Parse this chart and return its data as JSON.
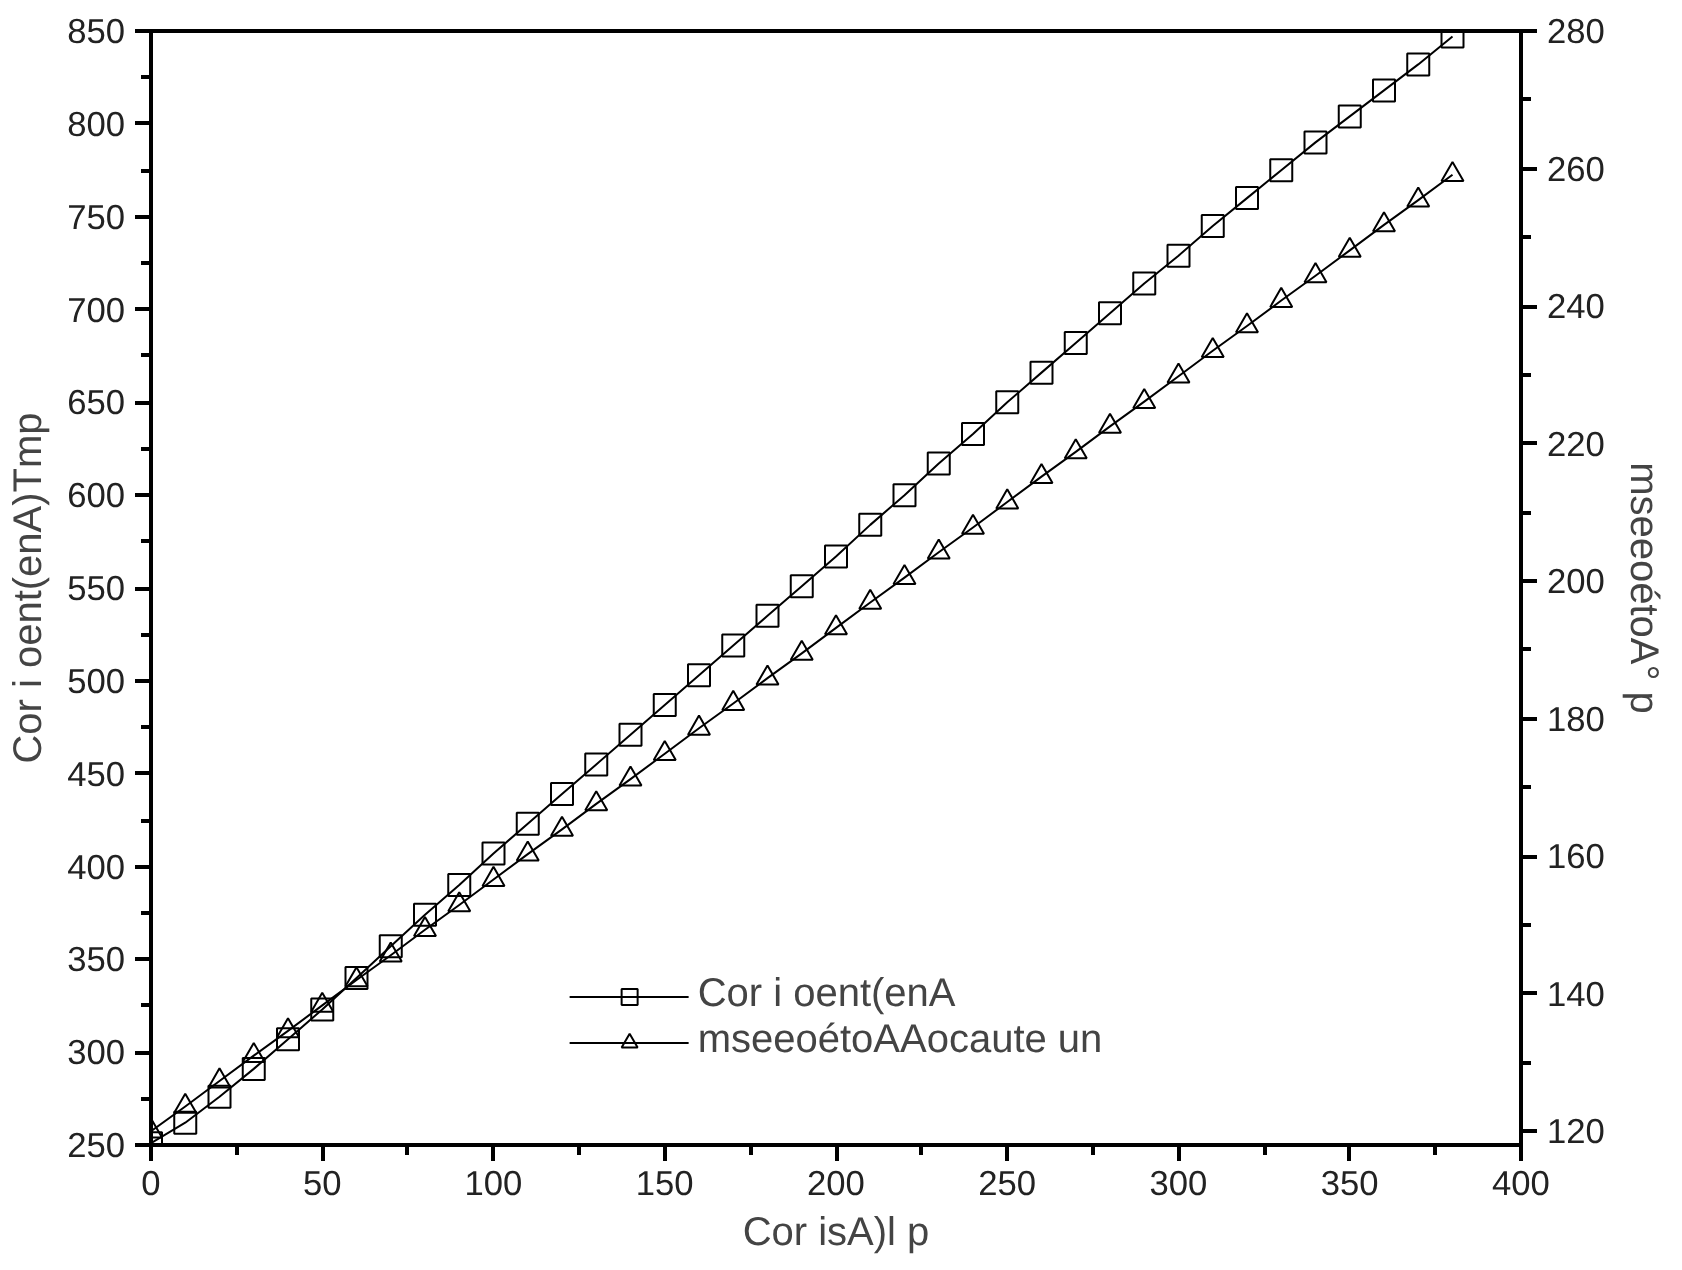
{
  "chart_data": {
    "type": "line",
    "xlabel": "Cor isA)l p",
    "ylabel": "Cor i oent(enA)Tmp",
    "y2label": "mseeoétoA° p",
    "x": [
      0,
      10,
      20,
      30,
      40,
      50,
      60,
      70,
      80,
      90,
      100,
      110,
      120,
      130,
      140,
      150,
      160,
      170,
      180,
      190,
      200,
      210,
      220,
      230,
      240,
      250,
      260,
      270,
      280,
      290,
      300,
      310,
      320,
      330,
      340,
      350,
      360,
      370,
      380
    ],
    "series": [
      {
        "name": "Cor i oent(enA",
        "color": "#000000",
        "marker": "square",
        "values": [
          251,
          262,
          276,
          291,
          307,
          323,
          340,
          357,
          374,
          390,
          407,
          423,
          439,
          455,
          471,
          487,
          503,
          519,
          535,
          551,
          567,
          584,
          600,
          617,
          633,
          650,
          666,
          682,
          698,
          714,
          729,
          745,
          760,
          775,
          790,
          804,
          818,
          832,
          847
        ]
      },
      {
        "name": "mseeoétoAAocaute un",
        "color": "#000000",
        "marker": "triangle",
        "axis": "y2",
        "values": [
          120,
          123.6,
          127.3,
          131,
          134.6,
          138.3,
          142,
          145.6,
          149.3,
          152.9,
          156.6,
          160.3,
          163.9,
          167.6,
          171.2,
          174.9,
          178.6,
          182.2,
          185.9,
          189.5,
          193.2,
          196.9,
          200.5,
          204.2,
          207.8,
          211.5,
          215.2,
          218.8,
          222.5,
          226.1,
          229.8,
          233.5,
          237.1,
          240.8,
          244.4,
          248.1,
          251.8,
          255.4,
          259.1
        ]
      }
    ],
    "xlim": [
      0,
      400
    ],
    "xticks": [
      0,
      {
        "value": 25,
        "label": null
      },
      50,
      {
        "value": 75,
        "label": null
      },
      100,
      {
        "value": 125,
        "label": null
      },
      150,
      {
        "value": 175,
        "label": null
      },
      200,
      {
        "value": 225,
        "label": null
      },
      250,
      {
        "value": 275,
        "label": null
      },
      300,
      {
        "value": 325,
        "label": null
      },
      350,
      {
        "value": 375,
        "label": null
      },
      400
    ],
    "ylim": [
      250,
      850
    ],
    "yticks": [
      250,
      {
        "value": 275,
        "label": null
      },
      300,
      {
        "value": 325,
        "label": null
      },
      350,
      {
        "value": 375,
        "label": null
      },
      400,
      {
        "value": 425,
        "label": null
      },
      450,
      {
        "value": 475,
        "label": null
      },
      500,
      {
        "value": 525,
        "label": null
      },
      550,
      {
        "value": 575,
        "label": null
      },
      600,
      {
        "value": 625,
        "label": null
      },
      650,
      {
        "value": 675,
        "label": null
      },
      700,
      {
        "value": 725,
        "label": null
      },
      750,
      {
        "value": 775,
        "label": null
      },
      800,
      {
        "value": 825,
        "label": null
      },
      850
    ],
    "y2lim": [
      118,
      280
    ],
    "y2ticks": [
      120,
      {
        "value": 130,
        "label": null
      },
      140,
      {
        "value": 150,
        "label": null
      },
      160,
      {
        "value": 170,
        "label": null
      },
      180,
      {
        "value": 190,
        "label": null
      },
      200,
      {
        "value": 210,
        "label": null
      },
      220,
      {
        "value": 230,
        "label": null
      },
      240,
      {
        "value": 250,
        "label": null
      },
      260,
      {
        "value": 270,
        "label": null
      },
      280
    ],
    "grid": false,
    "legend": "bottom",
    "line_style": "solid"
  }
}
